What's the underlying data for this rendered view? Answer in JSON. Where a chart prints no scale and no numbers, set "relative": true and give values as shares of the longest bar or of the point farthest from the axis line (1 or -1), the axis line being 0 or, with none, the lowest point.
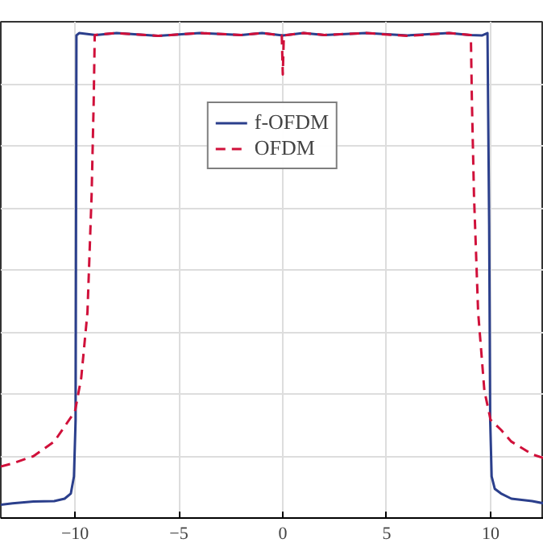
{
  "chart_data": {
    "type": "line",
    "relative": true,
    "xlim": [
      -13.57,
      12.56
    ],
    "xticks": [
      -10,
      -5,
      0,
      5,
      10
    ],
    "grid": true,
    "legend": "top",
    "marker": "none",
    "series": [
      {
        "name": "f-OFDM",
        "color": "#2b3f8c",
        "line_style": "solid",
        "x": [
          -13.57,
          -13,
          -12,
          -11,
          -10.5,
          -10.2,
          -10.05,
          -9.97,
          -9.93,
          -9.8,
          -9,
          -8,
          -6,
          -4,
          -2,
          -1,
          0,
          1,
          2,
          4,
          6,
          8,
          9,
          9.6,
          9.85,
          9.93,
          9.98,
          10.05,
          10.2,
          10.5,
          11,
          12,
          12.56
        ],
        "values": [
          0,
          0.003,
          0.007,
          0.008,
          0.013,
          0.024,
          0.06,
          0.18,
          0.995,
          1,
          0.996,
          1,
          0.994,
          1,
          0.996,
          1,
          0.995,
          1,
          0.996,
          1,
          0.995,
          1,
          0.996,
          0.995,
          1,
          0.595,
          0.18,
          0.06,
          0.034,
          0.024,
          0.013,
          0.008,
          0.003
        ]
      },
      {
        "name": "OFDM",
        "color": "#d0103a",
        "line_style": "dashed",
        "x": [
          -13.57,
          -13,
          -12,
          -11,
          -10.5,
          -10,
          -9.7,
          -9.4,
          -9.2,
          -9.1,
          -9.05,
          -8,
          -6,
          -4,
          -2,
          -1,
          -0.05,
          0,
          0.05,
          1,
          2,
          4,
          6,
          8,
          9.05,
          9.1,
          9.2,
          9.4,
          9.7,
          10,
          10.5,
          11,
          12,
          12.56
        ],
        "values": [
          0.081,
          0.088,
          0.103,
          0.134,
          0.166,
          0.198,
          0.269,
          0.408,
          0.657,
          0.855,
          0.996,
          1,
          0.994,
          1,
          0.996,
          1,
          0.995,
          0.912,
          0.995,
          1,
          0.996,
          1,
          0.994,
          1,
          0.996,
          0.855,
          0.657,
          0.408,
          0.242,
          0.18,
          0.159,
          0.134,
          0.107,
          0.099
        ]
      }
    ]
  }
}
